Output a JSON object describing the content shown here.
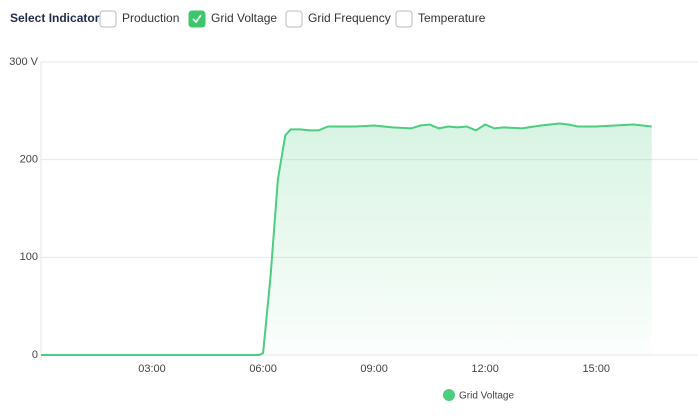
{
  "controls": {
    "label": "Select Indicator:",
    "options": [
      {
        "label": "Production",
        "checked": false
      },
      {
        "label": "Grid Voltage",
        "checked": true
      },
      {
        "label": "Grid Frequency",
        "checked": false
      },
      {
        "label": "Temperature",
        "checked": false
      }
    ]
  },
  "chart_data": {
    "type": "line",
    "x": [
      0,
      5.9,
      6.0,
      6.2,
      6.4,
      6.6,
      6.75,
      7.0,
      7.25,
      7.5,
      7.75,
      8.0,
      8.5,
      9.0,
      9.5,
      10.0,
      10.25,
      10.5,
      10.75,
      11.0,
      11.25,
      11.5,
      11.75,
      12.0,
      12.25,
      12.5,
      13.0,
      13.5,
      14.0,
      14.25,
      14.5,
      15.0,
      15.5,
      16.0,
      16.25,
      16.5
    ],
    "series": [
      {
        "name": "Grid Voltage",
        "color": "#4ccd7f",
        "values": [
          0,
          0,
          2,
          80,
          180,
          225,
          231,
          231,
          230,
          230,
          234,
          234,
          234,
          235,
          233,
          232,
          235,
          236,
          232,
          234,
          233,
          234,
          230,
          236,
          232,
          233,
          232,
          235,
          237,
          236,
          234,
          234,
          235,
          236,
          235,
          234
        ]
      }
    ],
    "xlim": [
      0,
      17.75
    ],
    "xticks": [
      {
        "value": 3,
        "label": "03:00"
      },
      {
        "value": 6,
        "label": "06:00"
      },
      {
        "value": 9,
        "label": "09:00"
      },
      {
        "value": 12,
        "label": "12:00"
      },
      {
        "value": 15,
        "label": "15:00"
      }
    ],
    "ylim": [
      0,
      300
    ],
    "yticks": [
      0,
      100,
      200,
      {
        "value": 300,
        "label": "300 V"
      }
    ],
    "grid": true
  }
}
